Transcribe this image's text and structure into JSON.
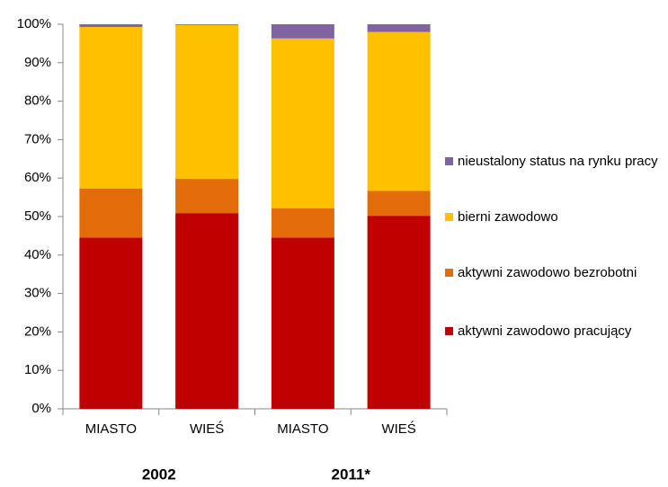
{
  "chart_data": {
    "type": "stacked_bar",
    "categories": [
      "MIASTO",
      "WIEŚ",
      "MIASTO",
      "WIEŚ"
    ],
    "group_labels": [
      "2002",
      "2011*"
    ],
    "series": [
      {
        "name": "aktywni zawodowo pracujący",
        "color": "#c00000",
        "values": [
          44.5,
          50.9,
          44.5,
          50.2
        ]
      },
      {
        "name": "aktywni zawodowo bezrobotni",
        "color": "#e36c0a",
        "values": [
          12.8,
          8.9,
          7.6,
          6.5
        ]
      },
      {
        "name": "bierni zawodowo",
        "color": "#ffc000",
        "values": [
          42,
          40,
          44.2,
          41.3
        ]
      },
      {
        "name": "nieustalony status na rynku pracy",
        "color": "#8064a2",
        "values": [
          0.7,
          0.2,
          3.7,
          2
        ]
      }
    ],
    "ylim": [
      0,
      100
    ],
    "yticks": [
      {
        "value": 0,
        "label": "0%"
      },
      {
        "value": 10,
        "label": "10%"
      },
      {
        "value": 20,
        "label": "20%"
      },
      {
        "value": 30,
        "label": "30%"
      },
      {
        "value": 40,
        "label": "40%"
      },
      {
        "value": 50,
        "label": "50%"
      },
      {
        "value": 60,
        "label": "60%"
      },
      {
        "value": 70,
        "label": "70%"
      },
      {
        "value": 80,
        "label": "80%"
      },
      {
        "value": 90,
        "label": "90%"
      },
      {
        "value": 100,
        "label": "100%"
      }
    ],
    "legend": "right"
  }
}
